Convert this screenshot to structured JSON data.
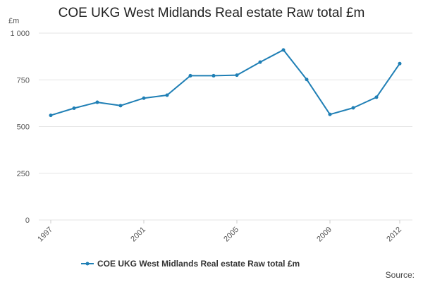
{
  "chart_data": {
    "type": "line",
    "title": "COE UKG West Midlands Real estate Raw total £m",
    "unit_label": "£m",
    "x": [
      1997,
      1998,
      1999,
      2000,
      2001,
      2002,
      2003,
      2004,
      2005,
      2006,
      2007,
      2008,
      2009,
      2010,
      2011,
      2012
    ],
    "x_tick_labels": [
      "1997",
      "2001",
      "2005",
      "2009",
      "2012"
    ],
    "x_tick_values": [
      1997,
      2001,
      2005,
      2009,
      2012
    ],
    "y_tick_labels": [
      "0",
      "250",
      "500",
      "750",
      "1 000"
    ],
    "y_tick_values": [
      0,
      250,
      500,
      750,
      1000
    ],
    "ylim": [
      0,
      1000
    ],
    "grid": true,
    "series": [
      {
        "name": "COE UKG West Midlands Real estate Raw total £m",
        "color": "#1f7fb5",
        "values": [
          560,
          598,
          630,
          612,
          652,
          668,
          772,
          772,
          775,
          845,
          910,
          752,
          565,
          600,
          657,
          837
        ]
      }
    ],
    "legend_position": "bottom-center",
    "source": "Source:"
  }
}
